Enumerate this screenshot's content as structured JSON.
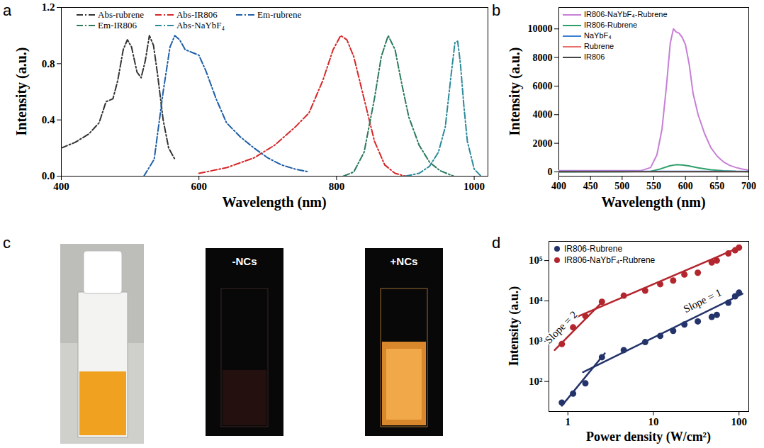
{
  "chart_data": [
    {
      "panel": "a",
      "type": "line",
      "x_label": "Wavelength (nm)",
      "y_label": "Intensity (a.u.)",
      "xlim": [
        400,
        1020
      ],
      "xticks": [
        400,
        600,
        800,
        1000
      ],
      "ylim": [
        0,
        1.2
      ],
      "yticks": [
        {
          "value": 0,
          "label": "0.0"
        },
        0.4,
        0.8,
        1.2
      ],
      "legend": "top",
      "series": [
        {
          "name": "Abs-rubrene",
          "color": "#333333",
          "line_style": "dashdot",
          "x": [
            400,
            420,
            440,
            455,
            465,
            475,
            482,
            490,
            496,
            502,
            510,
            516,
            522,
            528,
            534,
            540,
            548,
            556,
            565
          ],
          "values": [
            0.2,
            0.24,
            0.3,
            0.38,
            0.53,
            0.55,
            0.68,
            0.9,
            0.97,
            0.92,
            0.74,
            0.7,
            0.82,
            1.0,
            0.93,
            0.72,
            0.4,
            0.2,
            0.12
          ]
        },
        {
          "name": "Abs-IR806",
          "color": "#d62728",
          "line_style": "dashdot",
          "x": [
            600,
            640,
            680,
            710,
            740,
            760,
            780,
            795,
            806,
            815,
            825,
            840,
            855,
            870,
            885,
            900
          ],
          "values": [
            0.02,
            0.06,
            0.13,
            0.22,
            0.35,
            0.45,
            0.68,
            0.9,
            1.0,
            0.97,
            0.85,
            0.55,
            0.25,
            0.08,
            0.02,
            0.0
          ]
        },
        {
          "name": "Em-rubrene",
          "color": "#1f5fa8",
          "line_style": "dashdot",
          "x": [
            520,
            535,
            548,
            558,
            565,
            572,
            580,
            590,
            600,
            610,
            625,
            640,
            660,
            680,
            700,
            720,
            740,
            760
          ],
          "values": [
            0.0,
            0.12,
            0.6,
            0.92,
            1.0,
            0.97,
            0.9,
            0.88,
            0.86,
            0.75,
            0.55,
            0.38,
            0.28,
            0.2,
            0.13,
            0.08,
            0.05,
            0.03
          ]
        },
        {
          "name": "Em-IR806",
          "color": "#2a7a5a",
          "line_style": "dashdot",
          "x": [
            810,
            825,
            840,
            855,
            865,
            875,
            885,
            895,
            905,
            920,
            935,
            950,
            970
          ],
          "values": [
            0.0,
            0.03,
            0.17,
            0.55,
            0.85,
            1.0,
            0.9,
            0.65,
            0.42,
            0.22,
            0.1,
            0.04,
            0.0
          ]
        },
        {
          "name": "Abs-NaYbF₄",
          "color": "#2a8a9a",
          "line_style": "dashdot",
          "x": [
            900,
            920,
            935,
            948,
            958,
            966,
            972,
            976,
            980,
            985,
            990,
            1000,
            1010
          ],
          "values": [
            0.0,
            0.02,
            0.07,
            0.17,
            0.35,
            0.7,
            0.95,
            0.96,
            0.8,
            0.5,
            0.25,
            0.05,
            0.0
          ]
        }
      ]
    },
    {
      "panel": "b",
      "type": "line",
      "x_label": "Wavelength (nm)",
      "y_label": "Intensity (a.u.)",
      "xlim": [
        400,
        700
      ],
      "xticks": [
        400,
        450,
        500,
        550,
        600,
        650,
        700
      ],
      "ylim": [
        -300,
        11500
      ],
      "yticks": [
        0,
        2000,
        4000,
        6000,
        8000,
        10000
      ],
      "legend": "top-left",
      "series": [
        {
          "name": "IR806-NaYbF₄-Rubrene",
          "color": "#c77fd6",
          "line_style": "solid",
          "x": [
            400,
            450,
            500,
            530,
            545,
            555,
            563,
            570,
            576,
            581,
            585,
            590,
            595,
            600,
            606,
            612,
            620,
            630,
            640,
            650,
            660,
            670,
            680,
            690,
            700
          ],
          "values": [
            80,
            80,
            80,
            90,
            300,
            1200,
            3000,
            6000,
            9000,
            10000,
            9800,
            9700,
            9400,
            8900,
            7500,
            5500,
            4000,
            2700,
            1700,
            1100,
            700,
            450,
            300,
            200,
            120
          ]
        },
        {
          "name": "IR806-Rubrene",
          "color": "#2e9e6b",
          "line_style": "solid",
          "x": [
            400,
            500,
            545,
            560,
            575,
            585,
            595,
            605,
            620,
            640,
            660,
            680,
            700
          ],
          "values": [
            0,
            10,
            40,
            200,
            420,
            500,
            480,
            420,
            280,
            150,
            70,
            30,
            10
          ]
        },
        {
          "name": "NaYbF₄",
          "color": "#3b7fd4",
          "line_style": "solid",
          "x": [
            400,
            700
          ],
          "values": [
            30,
            30
          ]
        },
        {
          "name": "Rubrene",
          "color": "#e8706a",
          "line_style": "solid",
          "x": [
            400,
            700
          ],
          "values": [
            20,
            20
          ]
        },
        {
          "name": "IR806",
          "color": "#444444",
          "line_style": "solid",
          "x": [
            400,
            700
          ],
          "values": [
            10,
            10
          ]
        }
      ]
    },
    {
      "panel": "c",
      "type": "photo",
      "labels": [
        "-NCs",
        "+NCs"
      ]
    },
    {
      "panel": "d",
      "type": "scatter",
      "log": true,
      "x_label": "Power density (W/cm²)",
      "y_label": "Intensity (a.u.)",
      "xlim": [
        0.6,
        130
      ],
      "xticks": [
        1,
        10,
        100
      ],
      "ylim": [
        18,
        300000
      ],
      "yticks": [
        {
          "value": 100,
          "label": "10²"
        },
        {
          "value": 1000,
          "label": "10³"
        },
        {
          "value": 10000,
          "label": "10⁴"
        },
        {
          "value": 100000,
          "label": "10⁵"
        }
      ],
      "legend": "top-left",
      "x": [
        0.85,
        1.15,
        1.6,
        2.5,
        4.5,
        8,
        12,
        17,
        23,
        33,
        48,
        55,
        75,
        90,
        100
      ],
      "series": [
        {
          "name": "IR806-Rubrene",
          "color": "#24346b",
          "marker": "circle",
          "values": [
            30,
            50,
            90,
            400,
            600,
            950,
            1350,
            1800,
            2600,
            3100,
            4000,
            4500,
            9000,
            13000,
            16000
          ]
        },
        {
          "name": "IR806-NaYbF₄-Rubrene",
          "color": "#b3262e",
          "marker": "circle",
          "values": [
            850,
            2200,
            4200,
            9500,
            13500,
            18000,
            26000,
            32000,
            45000,
            50000,
            90000,
            100000,
            150000,
            180000,
            210000
          ]
        }
      ],
      "fits": [
        {
          "color": "#b3262e",
          "x": [
            0.7,
            2.6
          ],
          "values": [
            600,
            10000
          ],
          "label": "Slope = 2"
        },
        {
          "color": "#b3262e",
          "x": [
            1.2,
            105
          ],
          "values": [
            3800,
            220000
          ]
        },
        {
          "color": "#24346b",
          "x": [
            0.85,
            2.7
          ],
          "values": [
            25,
            500
          ]
        },
        {
          "color": "#24346b",
          "x": [
            1.5,
            110
          ],
          "values": [
            170,
            15000
          ],
          "label": "Slope = 1"
        }
      ]
    }
  ]
}
